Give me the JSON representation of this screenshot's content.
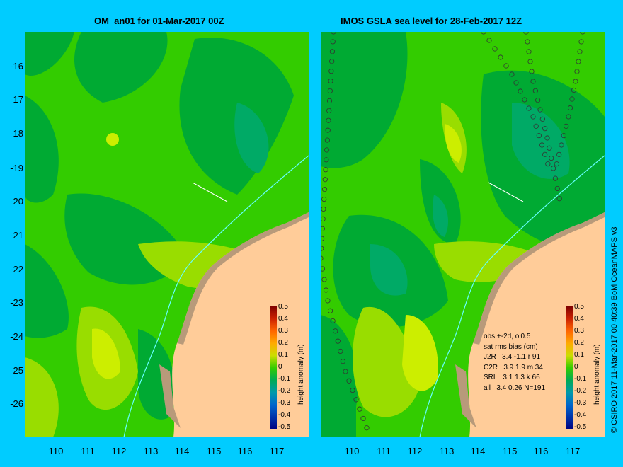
{
  "left_panel": {
    "title": "OM_an01 for 01-Mar-2017 00Z"
  },
  "right_panel": {
    "title": "IMOS GSLA sea level  for 28-Feb-2017 12Z"
  },
  "y_axis": {
    "ticks": [
      "-16",
      "-17",
      "-18",
      "-19",
      "-20",
      "-21",
      "-22",
      "-23",
      "-24",
      "-25",
      "-26"
    ]
  },
  "x_axis": {
    "ticks": [
      "110",
      "111",
      "112",
      "113",
      "114",
      "115",
      "116",
      "117"
    ]
  },
  "colorbar": {
    "title": "height anomaly (m)",
    "ticks": [
      "0.5",
      "0.4",
      "0.3",
      "0.2",
      "0.1",
      "0",
      "-0.1",
      "-0.2",
      "-0.3",
      "-0.4",
      "-0.5"
    ]
  },
  "stats": {
    "header": "obs +-2d, oi0.5",
    "subheader": "sat rms bias (cm)",
    "rows": [
      "J2R   3.4 -1.1 r 91",
      "C2R   3.9 1.9 m 34",
      "SRL   3.1 1.3 k 66",
      "all   3.4 0.26 N=191"
    ]
  },
  "credit": "© CSIRO 2017  11-Mar-2017 00:40:39 BoM OceanMAPS v3",
  "colors": {
    "background": "#00ccff",
    "land": "#ffcc99",
    "shelf": "#b89a7a",
    "ocean_mid": "#33cc00",
    "ocean_low": "#00aa33",
    "ocean_lower": "#00aa66",
    "ocean_high": "#99dd00",
    "ocean_higher": "#ccee00",
    "contour": "#66ffff"
  }
}
